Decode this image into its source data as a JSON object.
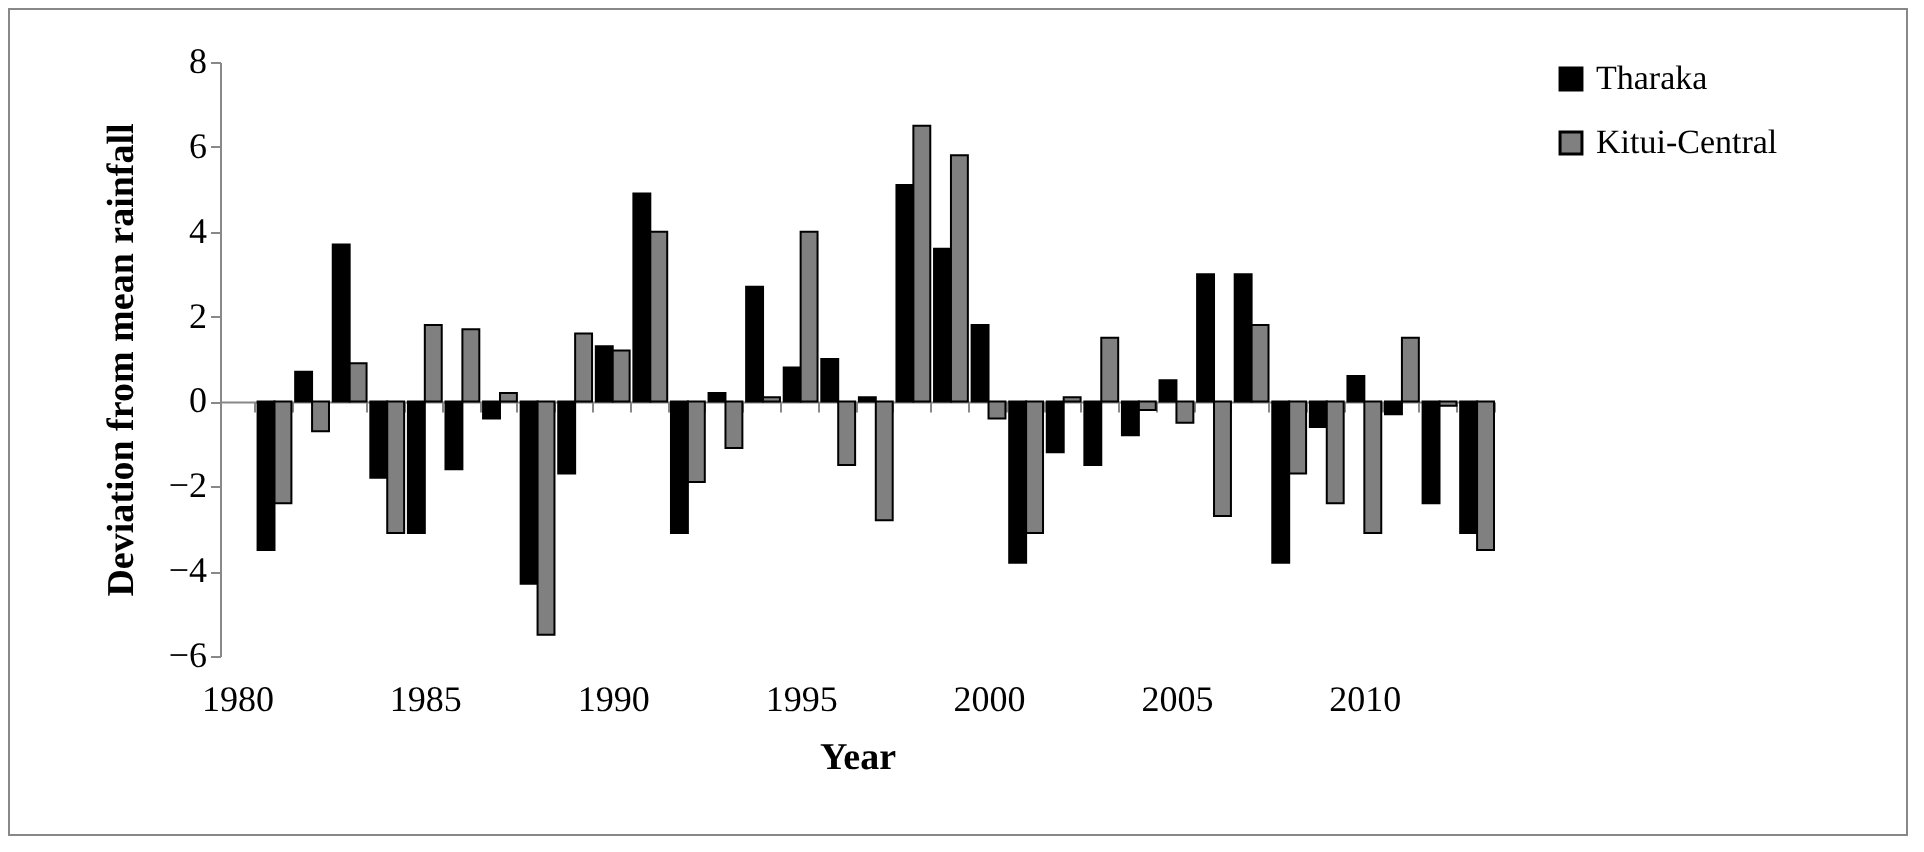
{
  "chart_data": {
    "type": "bar",
    "xlabel": "Year",
    "ylabel": "Deviation from mean rainfall",
    "categories": [
      "1980",
      null,
      null,
      null,
      null,
      "1985",
      null,
      null,
      null,
      null,
      "1990",
      null,
      null,
      null,
      null,
      "1995",
      null,
      null,
      null,
      null,
      "2000",
      null,
      null,
      null,
      null,
      "2005",
      null,
      null,
      null,
      null,
      "2010",
      null,
      null,
      null
    ],
    "series": [
      {
        "name": "Tharaka",
        "color": "#000000",
        "values": [
          null,
          -3.5,
          0.7,
          3.7,
          -1.8,
          -3.1,
          -1.6,
          -0.4,
          -4.3,
          -1.7,
          1.3,
          4.9,
          -3.1,
          0.2,
          2.7,
          0.8,
          1.0,
          0.1,
          5.1,
          3.6,
          1.8,
          -3.8,
          -1.2,
          -1.5,
          -0.8,
          0.5,
          3.0,
          3.0,
          -3.8,
          -0.6,
          0.6,
          -0.3,
          -2.4,
          -3.1
        ]
      },
      {
        "name": "Kitui-Central",
        "color": "#808080",
        "values": [
          null,
          -2.4,
          -0.7,
          0.9,
          -3.1,
          1.8,
          1.7,
          0.2,
          -5.5,
          1.6,
          1.2,
          4.0,
          -1.9,
          -1.1,
          0.1,
          4.0,
          -1.5,
          -2.8,
          6.5,
          5.8,
          -0.4,
          -3.1,
          0.1,
          1.5,
          -0.2,
          -0.5,
          -2.7,
          1.8,
          -1.7,
          -2.4,
          -3.1,
          1.5,
          -0.1,
          -3.5
        ]
      }
    ],
    "ylim": [
      -6,
      8
    ],
    "yticks": [
      -6,
      -4,
      -2,
      0,
      2,
      4,
      6,
      8
    ],
    "legend": "right"
  }
}
